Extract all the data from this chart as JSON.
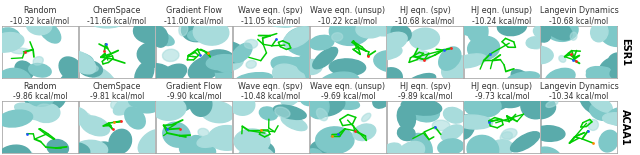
{
  "rows": [
    "ESR1",
    "ACAA1"
  ],
  "columns": [
    "Random",
    "ChemSpace",
    "Gradient Flow",
    "Wave eqn. (spv)",
    "Wave eqn. (unsup)",
    "HJ eqn. (spv)",
    "HJ eqn. (unsup)",
    "Langevin Dynamics"
  ],
  "esr1_values": [
    "-10.32 kcal/mol",
    "-11.66 kcal/mol",
    "-11.00 kcal/mol",
    "-11.05 kcal/mol",
    "-10.22 kcal/mol",
    "-10.68 kcal/mol",
    "-10.24 kcal/mol",
    "-10.68 kcal/mol"
  ],
  "acaa1_values": [
    "-9.86 kcal/mol",
    "-9.81 kcal/mol",
    "-9.90 kcal/mol",
    "-10.48 kcal/mol",
    "-9.69 kcal/mol",
    "-9.89 kcal/mol",
    "-9.73 kcal/mol",
    "-10.34 kcal/mol"
  ],
  "bg_color": "#FFFFFF",
  "protein_color_light": "#A8DCDC",
  "protein_color_mid": "#7EC8C8",
  "protein_color_dark": "#5AABAB",
  "border_color": "#999999",
  "col_label_fontsize": 5.8,
  "value_fontsize": 5.5,
  "row_label_fontsize": 7.0,
  "fig_width": 6.4,
  "fig_height": 1.55
}
